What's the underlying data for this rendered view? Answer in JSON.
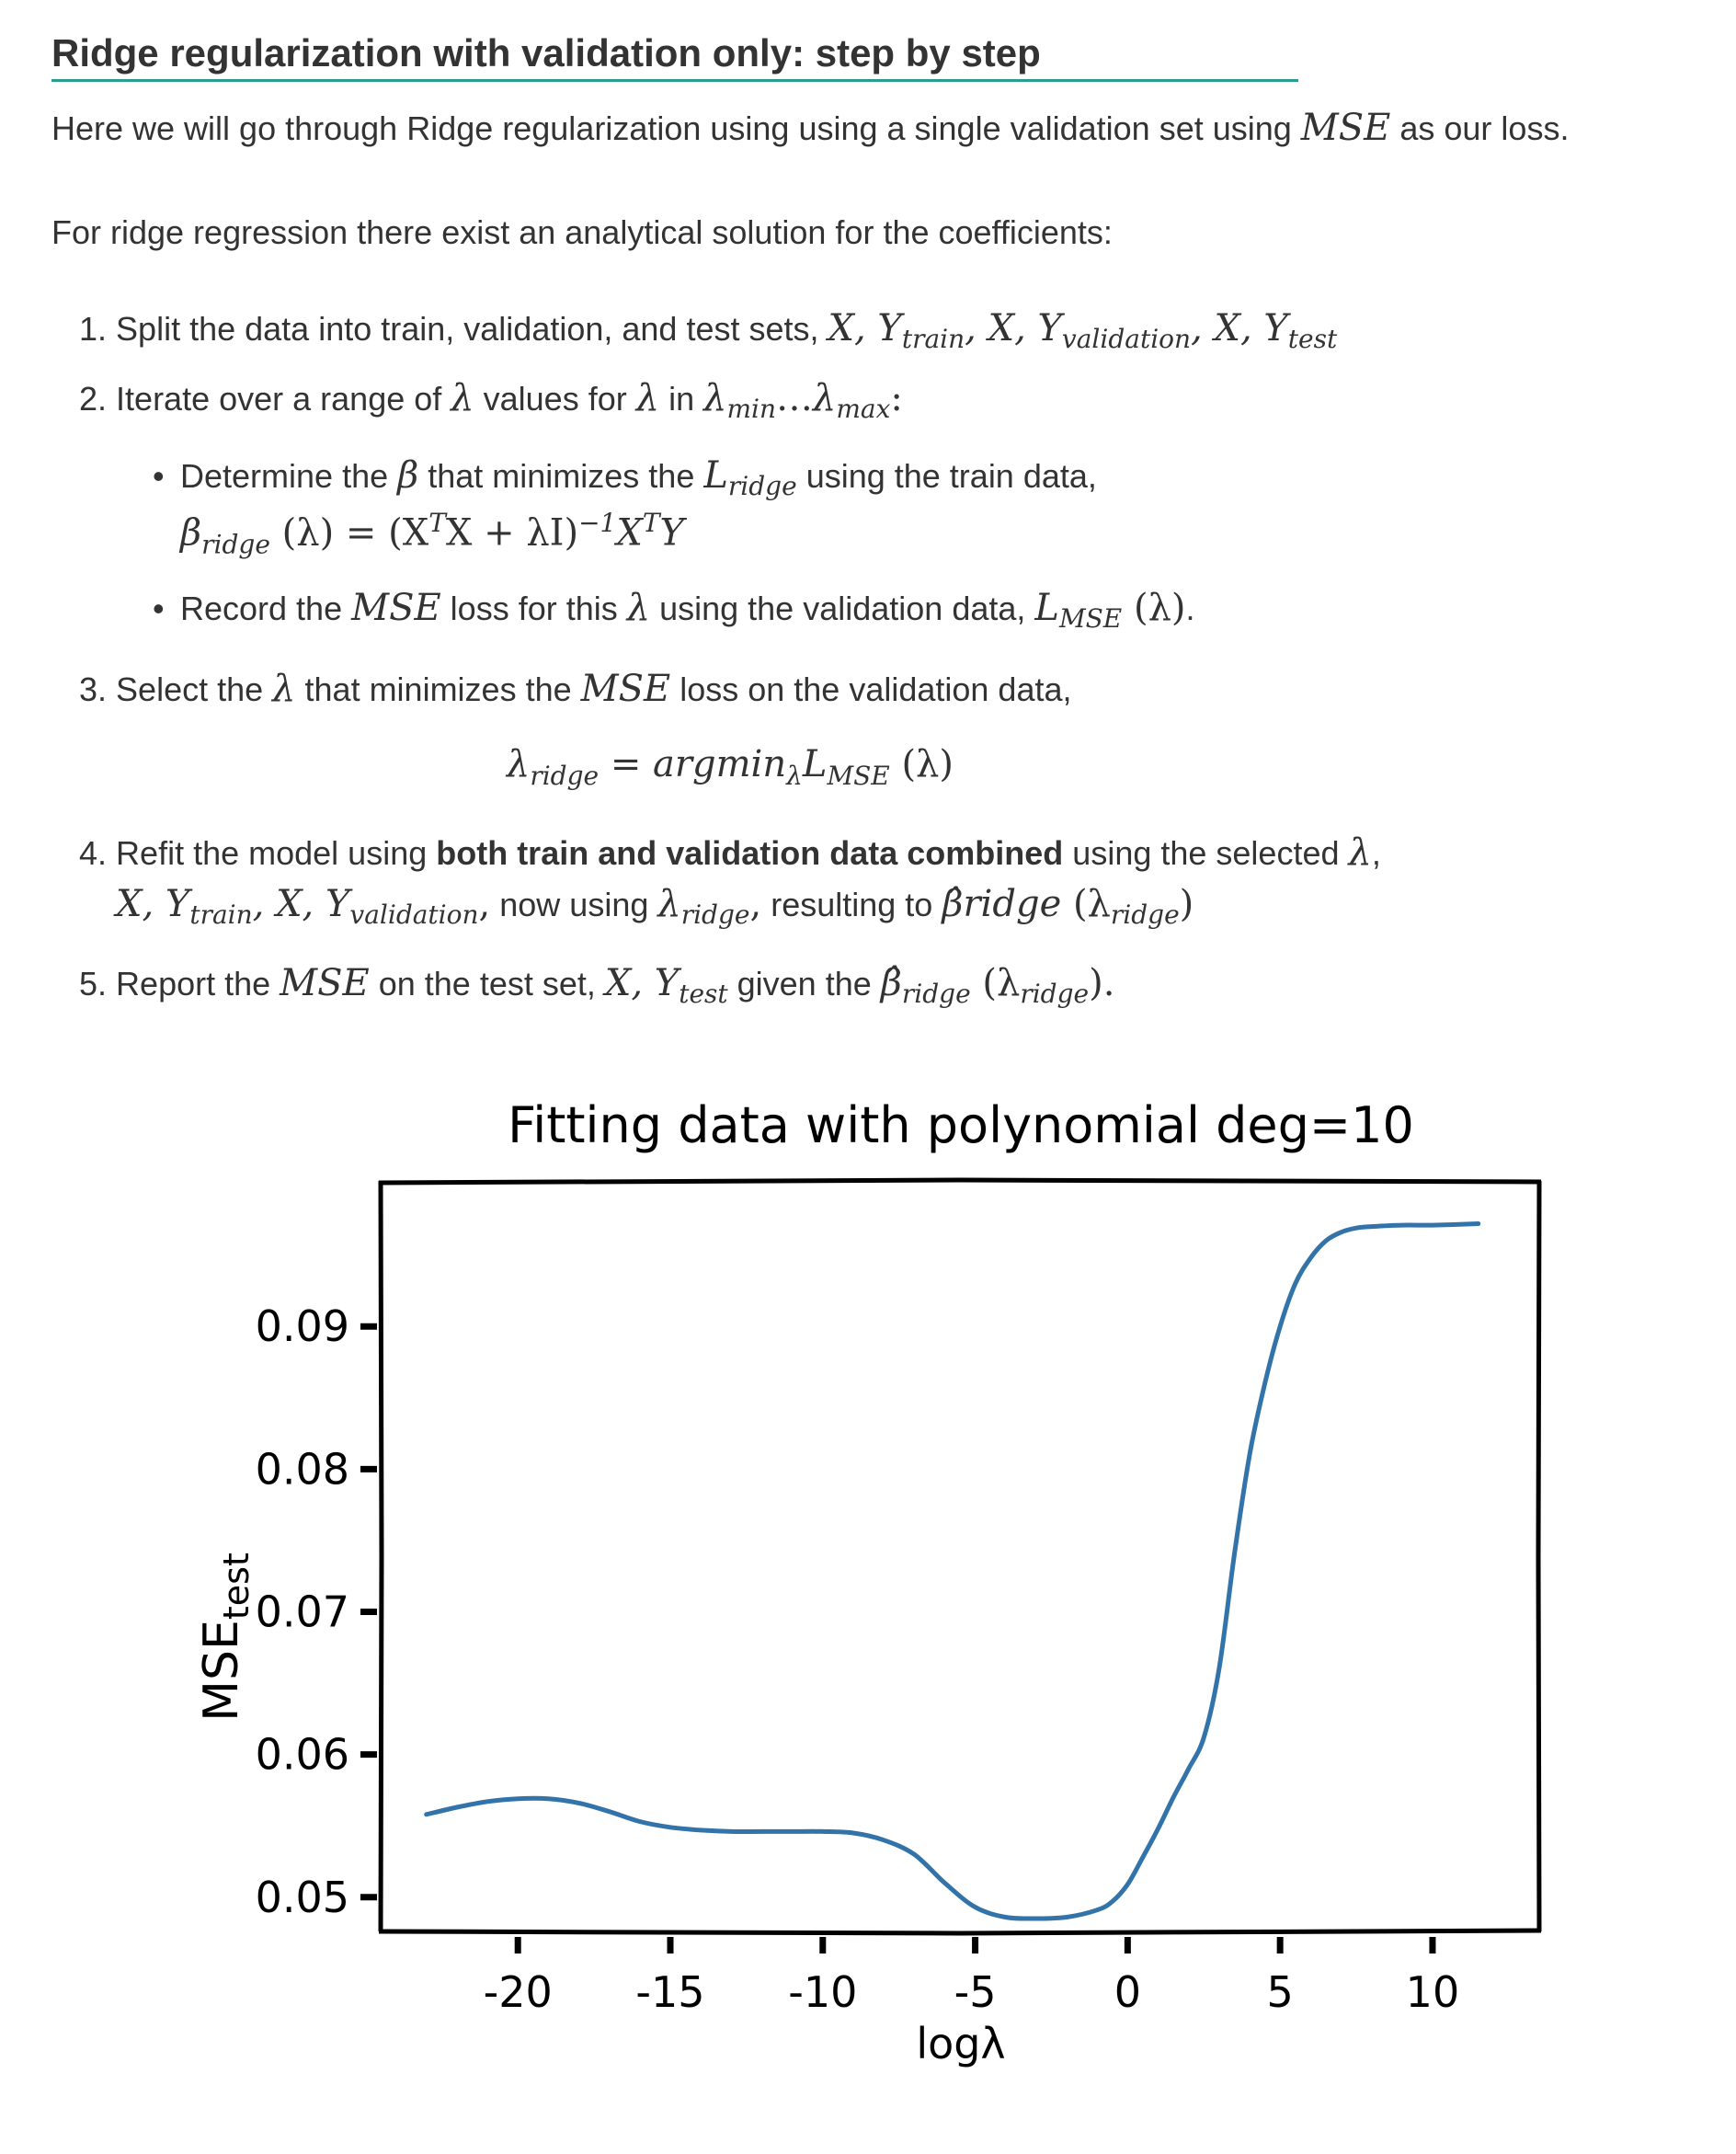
{
  "doc": {
    "title": "Ridge regularization with validation only: step by step",
    "intro": {
      "before": "Here we will go through Ridge regularization using using a single validation set using ",
      "math": "MSE",
      "after": " as our loss."
    },
    "analytic_sentence": "For ridge regression there exist an analytical solution for the coefficients:",
    "step1": {
      "num": "1.",
      "text": "Split the data into train, validation, and test sets, ",
      "m1": "X, Y",
      "s1": "train",
      "m2": ", X, Y",
      "s2": "validation",
      "m3": ", X, Y",
      "s3": "test"
    },
    "step2": {
      "num": "2.",
      "t1": "Iterate over a range of ",
      "lam": "λ",
      "t2": " values for ",
      "t3": " in ",
      "lmin_sub": "min",
      "dots": "…",
      "lmax_sub": "max",
      "colon": ":"
    },
    "bullet1": {
      "t1": "Determine the ",
      "beta": "β",
      "t2": " that minimizes the ",
      "L": "L",
      "L_sub": "ridge",
      "t3": " using the train data,",
      "formula_beta": "β",
      "formula_beta_sub": "ridge",
      "formula_mid": " (λ) = (X",
      "formula_T1": "T",
      "formula_mid2": "X + λI)",
      "formula_inv": "−1",
      "formula_end": "X",
      "formula_T2": "T",
      "formula_Y": "Y"
    },
    "bullet2": {
      "t1": "Record the ",
      "mse": "MSE",
      "t2": " loss for this ",
      "lam": "λ",
      "t3": " using the validation data, ",
      "L": "L",
      "L_sub": "MSE",
      "paren": " (λ)",
      "period": "."
    },
    "step3": {
      "num": "3.",
      "t1": "Select the ",
      "lam": "λ",
      "t2": " that minimizes the ",
      "mse": "MSE",
      "t3": " loss on the validation data,",
      "eq_lam": "λ",
      "eq_lam_sub": "ridge",
      "eq_mid": " = argmin",
      "eq_argsub": "λ",
      "eq_L": "L",
      "eq_L_sub": "MSE",
      "eq_paren": " (λ)"
    },
    "step4": {
      "num": "4.",
      "t1": "Refit the model using ",
      "bold": "both train and validation data combined",
      "t2": " using the selected ",
      "lam": "λ",
      "comma": ",",
      "m1": "X, Y",
      "s1": "train",
      "m2": ", X, Y",
      "s2": "validation",
      "m2c": ",",
      "t3": " now using ",
      "lr": "λ",
      "lr_sub": "ridge",
      "lr_c": ",",
      "t4": " resulting to ",
      "bhat": "β̂ridge",
      "paren_l": " (λ",
      "paren_sub": "ridge",
      "paren_r": ")"
    },
    "step5": {
      "num": "5.",
      "t1": "Report the ",
      "mse": "MSE",
      "t2": " on the test set, ",
      "m1": "X, Y",
      "s1": "test",
      "t3": " given the ",
      "bhat": "β̂",
      "bhat_sub": "ridge",
      "paren_l": " (λ",
      "paren_sub": "ridge",
      "paren_r": ").",
      "close": ""
    }
  },
  "chart_data": {
    "type": "line",
    "title": "Fitting data with polynomial deg=10",
    "xlabel": "logλ",
    "ylabel": "MSE",
    "ylabel_sub": "test",
    "xlim": [
      -24.5,
      13.5
    ],
    "ylim": [
      0.0476,
      0.1002
    ],
    "xticks": [
      -20,
      -15,
      -10,
      -5,
      0,
      5,
      10
    ],
    "xtick_labels": [
      "-20",
      "-15",
      "-10",
      "-5",
      "0",
      "5",
      "10"
    ],
    "yticks": [
      0.05,
      0.06,
      0.07,
      0.08,
      0.09
    ],
    "ytick_labels": [
      "0.05",
      "0.06",
      "0.07",
      "0.08",
      "0.09"
    ],
    "color": "#3274a9",
    "series": [
      {
        "x": [
          -23,
          -22,
          -21,
          -20,
          -19,
          -18,
          -17,
          -16,
          -15,
          -14,
          -13,
          -12,
          -11,
          -10,
          -9,
          -8,
          -7,
          -6,
          -5,
          -4,
          -3,
          -2,
          -1,
          -0.5,
          0,
          0.5,
          1,
          1.5,
          2,
          2.5,
          3,
          3.5,
          4,
          4.5,
          5,
          5.5,
          6,
          6.5,
          7,
          7.5,
          8,
          9,
          10,
          11.5
        ],
        "y": [
          0.0558,
          0.0563,
          0.0567,
          0.0569,
          0.0569,
          0.0566,
          0.056,
          0.0553,
          0.0549,
          0.0547,
          0.0546,
          0.0546,
          0.0546,
          0.0546,
          0.0545,
          0.054,
          0.053,
          0.051,
          0.0493,
          0.0486,
          0.0485,
          0.0486,
          0.0491,
          0.0497,
          0.0509,
          0.0528,
          0.0548,
          0.057,
          0.059,
          0.0612,
          0.066,
          0.074,
          0.081,
          0.086,
          0.09,
          0.093,
          0.0948,
          0.096,
          0.0966,
          0.0969,
          0.097,
          0.0971,
          0.0971,
          0.0972
        ]
      }
    ]
  }
}
